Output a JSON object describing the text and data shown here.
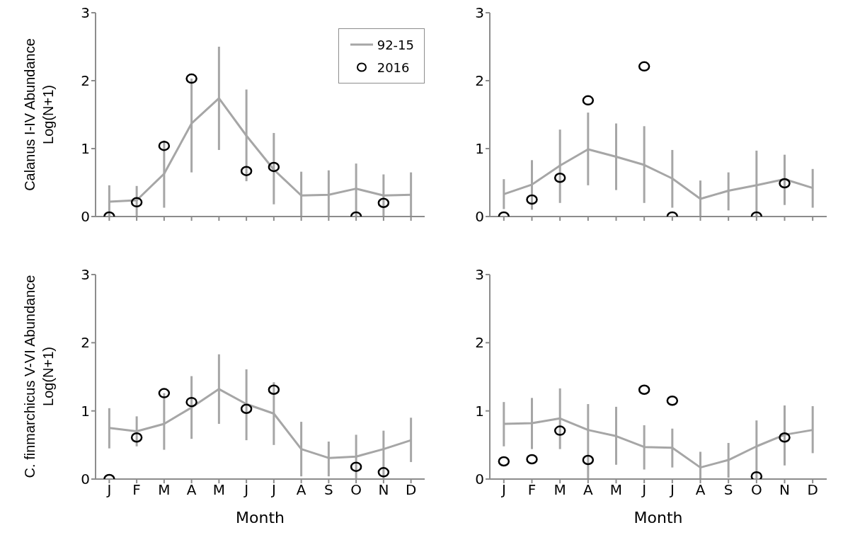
{
  "chart_data": [
    {
      "type": "line",
      "ylabel": "Calanus I-IV Abundance Log(N+1)",
      "categories": [
        null,
        null,
        null,
        null,
        null,
        null,
        null,
        null,
        null,
        null,
        null,
        null
      ],
      "ylim": [
        0,
        3
      ],
      "yticks": [
        0,
        1,
        2,
        3
      ],
      "tick_labels": "y",
      "legend": "top right",
      "series": [
        {
          "name": "92-15",
          "color": "#a6a6a6",
          "marker": "none",
          "values": [
            0.22,
            0.24,
            0.63,
            1.37,
            1.74,
            1.19,
            0.69,
            0.31,
            0.32,
            0.41,
            0.31,
            0.32
          ],
          "errors": [
            [
              0,
              0.46
            ],
            [
              0,
              0.45
            ],
            [
              0.13,
              1.12
            ],
            [
              0.65,
              2.03
            ],
            [
              0.98,
              2.5
            ],
            [
              0.52,
              1.87
            ],
            [
              0.18,
              1.23
            ],
            [
              0,
              0.66
            ],
            [
              0,
              0.68
            ],
            [
              0,
              0.78
            ],
            [
              0,
              0.62
            ],
            [
              0,
              0.65
            ]
          ]
        },
        {
          "name": "2016",
          "type": "scatter",
          "color": "#000000",
          "marker": "circle",
          "values": [
            0,
            0.21,
            1.04,
            2.03,
            null,
            0.67,
            0.73,
            null,
            null,
            0,
            0.2,
            null
          ]
        }
      ]
    },
    {
      "type": "line",
      "categories": [
        null,
        null,
        null,
        null,
        null,
        null,
        null,
        null,
        null,
        null,
        null,
        null
      ],
      "ylim": [
        0,
        3
      ],
      "yticks": [
        0,
        1,
        2,
        3
      ],
      "tick_labels": "y",
      "series": [
        {
          "color": "#a6a6a6",
          "marker": "none",
          "values": [
            0.33,
            0.47,
            0.75,
            0.99,
            0.88,
            0.76,
            0.56,
            0.26,
            0.38,
            0.46,
            0.55,
            0.42
          ],
          "errors": [
            [
              0.11,
              0.55
            ],
            [
              0.1,
              0.83
            ],
            [
              0.2,
              1.28
            ],
            [
              0.46,
              1.53
            ],
            [
              0.39,
              1.37
            ],
            [
              0.2,
              1.33
            ],
            [
              0.13,
              0.98
            ],
            [
              0,
              0.53
            ],
            [
              0.09,
              0.65
            ],
            [
              0,
              0.97
            ],
            [
              0.17,
              0.91
            ],
            [
              0.13,
              0.7
            ]
          ]
        },
        {
          "type": "scatter",
          "color": "#000000",
          "marker": "circle",
          "values": [
            0,
            0.25,
            0.57,
            1.71,
            null,
            2.21,
            0,
            null,
            null,
            0,
            0.49,
            null
          ]
        }
      ]
    },
    {
      "type": "line",
      "ylabel": "C. finmarchicus V-VI Abundance Log(N+1)",
      "xlabel": "Month",
      "categories": [
        "J",
        "F",
        "M",
        "A",
        "M",
        "J",
        "J",
        "A",
        "S",
        "O",
        "N",
        "D"
      ],
      "ylim": [
        0,
        3
      ],
      "yticks": [
        0,
        1,
        2,
        3
      ],
      "series": [
        {
          "color": "#a6a6a6",
          "marker": "none",
          "values": [
            0.75,
            0.7,
            0.81,
            1.05,
            1.32,
            1.1,
            0.96,
            0.44,
            0.31,
            0.33,
            0.44,
            0.57
          ],
          "errors": [
            [
              0.45,
              1.04
            ],
            [
              0.48,
              0.92
            ],
            [
              0.43,
              1.26
            ],
            [
              0.59,
              1.51
            ],
            [
              0.81,
              1.83
            ],
            [
              0.57,
              1.61
            ],
            [
              0.5,
              1.42
            ],
            [
              0.04,
              0.84
            ],
            [
              0.04,
              0.55
            ],
            [
              0,
              0.65
            ],
            [
              0,
              0.71
            ],
            [
              0.25,
              0.9
            ]
          ]
        },
        {
          "type": "scatter",
          "color": "#000000",
          "marker": "circle",
          "values": [
            0,
            0.61,
            1.26,
            1.13,
            null,
            1.03,
            1.31,
            null,
            null,
            0.18,
            0.1,
            null
          ]
        }
      ]
    },
    {
      "type": "line",
      "xlabel": "Month",
      "categories": [
        "J",
        "F",
        "M",
        "A",
        "M",
        "J",
        "J",
        "A",
        "S",
        "O",
        "N",
        "D"
      ],
      "ylim": [
        0,
        3
      ],
      "yticks": [
        0,
        1,
        2,
        3
      ],
      "series": [
        {
          "color": "#a6a6a6",
          "marker": "none",
          "values": [
            0.81,
            0.82,
            0.89,
            0.72,
            0.63,
            0.47,
            0.46,
            0.17,
            0.28,
            0.48,
            0.65,
            0.72
          ],
          "errors": [
            [
              0.48,
              1.13
            ],
            [
              0.44,
              1.19
            ],
            [
              0.44,
              1.33
            ],
            [
              0,
              1.1
            ],
            [
              0.21,
              1.06
            ],
            [
              0.14,
              0.79
            ],
            [
              0.17,
              0.74
            ],
            [
              0,
              0.4
            ],
            [
              0.02,
              0.53
            ],
            [
              0,
              0.86
            ],
            [
              0.2,
              1.08
            ],
            [
              0.38,
              1.07
            ]
          ]
        },
        {
          "type": "scatter",
          "color": "#000000",
          "marker": "circle",
          "values": [
            0.26,
            0.29,
            0.71,
            0.28,
            null,
            1.31,
            1.15,
            null,
            null,
            0.04,
            0.61,
            null
          ]
        }
      ]
    }
  ]
}
